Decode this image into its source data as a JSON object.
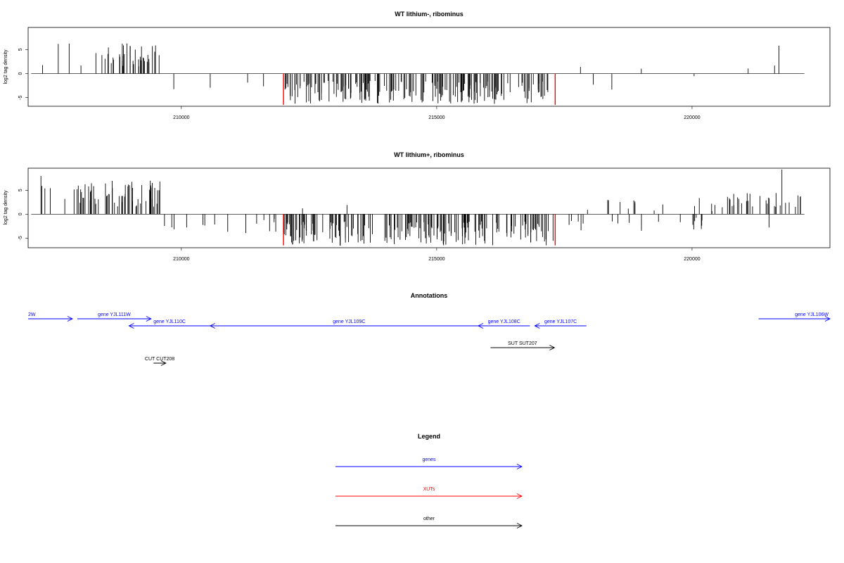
{
  "colors": {
    "gene": "#0000ff",
    "xut": "#ff0000",
    "other": "#000000",
    "bars": "#000000"
  },
  "chart_data": [
    {
      "type": "bar",
      "panel": "density-top",
      "title": "WT lithium-, ribominus",
      "xlabel": "",
      "ylabel": "log2 tag density",
      "xlim": [
        207000,
        222700
      ],
      "ylim": [
        -6.8,
        9.6
      ],
      "xticks": [
        210000,
        215000,
        220000
      ],
      "yticks": [
        -5,
        0,
        5
      ],
      "grid": false,
      "red_markers_x": [
        212000,
        217320
      ],
      "segments": [
        {
          "start": 207060,
          "end": 207400,
          "sign": 1,
          "min": 1.0,
          "max": 3.5,
          "density": 0.012
        },
        {
          "start": 207400,
          "end": 207700,
          "sign": 1,
          "min": 1.0,
          "max": 6.2,
          "density": 0.015
        },
        {
          "start": 207980,
          "end": 208060,
          "sign": 1,
          "min": 1.0,
          "max": 2.0,
          "density": 0.02
        },
        {
          "start": 207700,
          "end": 208300,
          "sign": 1,
          "min": 2.0,
          "max": 6.8,
          "density": 0.004
        },
        {
          "start": 208300,
          "end": 209600,
          "sign": 1,
          "min": 1.5,
          "max": 6.5,
          "density": 0.3
        },
        {
          "start": 209850,
          "end": 210000,
          "sign": -1,
          "min": 1.0,
          "max": 4.5,
          "density": 0.03
        },
        {
          "start": 210000,
          "end": 212000,
          "sign": -1,
          "min": 0.8,
          "max": 3.5,
          "density": 0.015
        },
        {
          "start": 212000,
          "end": 217200,
          "sign": -1,
          "min": 1.5,
          "max": 6.3,
          "density": 0.38
        },
        {
          "start": 217450,
          "end": 218400,
          "sign": 1,
          "min": 1.0,
          "max": 4.5,
          "density": 0.012
        },
        {
          "start": 217400,
          "end": 219200,
          "sign": -1,
          "min": 0.8,
          "max": 4.0,
          "density": 0.012
        },
        {
          "start": 218900,
          "end": 219100,
          "sign": 1,
          "min": 1.0,
          "max": 2.0,
          "density": 0.02
        },
        {
          "start": 219200,
          "end": 220200,
          "sign": -1,
          "min": 0.5,
          "max": 2.5,
          "density": 0.01
        },
        {
          "start": 220650,
          "end": 221400,
          "sign": 1,
          "min": 1.0,
          "max": 3.2,
          "density": 0.018
        },
        {
          "start": 221400,
          "end": 222000,
          "sign": 1,
          "min": 1.0,
          "max": 3.0,
          "density": 0.012
        },
        {
          "start": 221700,
          "end": 221710,
          "sign": 1,
          "min": 5.8,
          "max": 5.9,
          "density": 1
        }
      ]
    },
    {
      "type": "bar",
      "panel": "density-bottom",
      "title": "WT lithium+, ribominus",
      "xlabel": "",
      "ylabel": "log2 tag density",
      "xlim": [
        207000,
        222700
      ],
      "ylim": [
        -7.0,
        9.6
      ],
      "xticks": [
        210000,
        215000,
        220000
      ],
      "yticks": [
        -5,
        0,
        5
      ],
      "grid": false,
      "red_markers_x": [
        212000,
        217320
      ],
      "segments": [
        {
          "start": 207060,
          "end": 207700,
          "sign": 1,
          "min": 1.0,
          "max": 6.0,
          "density": 0.05
        },
        {
          "start": 207250,
          "end": 207260,
          "sign": 1,
          "min": 7.9,
          "max": 8.0,
          "density": 1
        },
        {
          "start": 207700,
          "end": 209600,
          "sign": 1,
          "min": 1.5,
          "max": 7.0,
          "density": 0.32
        },
        {
          "start": 209600,
          "end": 212000,
          "sign": -1,
          "min": 0.8,
          "max": 4.5,
          "density": 0.06
        },
        {
          "start": 209400,
          "end": 209900,
          "sign": -1,
          "min": 1.0,
          "max": 2.5,
          "density": 0.02
        },
        {
          "start": 212050,
          "end": 213400,
          "sign": 1,
          "min": 1.0,
          "max": 3.5,
          "density": 0.012
        },
        {
          "start": 212000,
          "end": 217300,
          "sign": -1,
          "min": 1.5,
          "max": 6.7,
          "density": 0.38
        },
        {
          "start": 217350,
          "end": 220800,
          "sign": 1,
          "min": 0.5,
          "max": 3.8,
          "density": 0.05
        },
        {
          "start": 217350,
          "end": 220300,
          "sign": -1,
          "min": 0.5,
          "max": 3.8,
          "density": 0.06
        },
        {
          "start": 220700,
          "end": 222200,
          "sign": 1,
          "min": 1.5,
          "max": 4.5,
          "density": 0.2
        },
        {
          "start": 221750,
          "end": 221760,
          "sign": 1,
          "min": 9.3,
          "max": 9.4,
          "density": 1
        },
        {
          "start": 221500,
          "end": 221510,
          "sign": -1,
          "min": 2.7,
          "max": 2.8,
          "density": 1
        }
      ]
    }
  ],
  "annotations": {
    "title": "Annotations",
    "features": [
      {
        "label": "2W",
        "start": 207000,
        "end": 208800,
        "strand": "+",
        "track": 0,
        "type": "gene",
        "label_align": "start"
      },
      {
        "label": "gene YJL111W",
        "start": 209000,
        "end": 212000,
        "strand": "+",
        "track": 0,
        "type": "gene",
        "label_align": "middle"
      },
      {
        "label": "gene YJL110C",
        "start": 211100,
        "end": 214400,
        "strand": "-",
        "track": 1,
        "type": "gene",
        "label_align": "middle"
      },
      {
        "label": "gene YJL109C",
        "start": 214400,
        "end": 225700,
        "strand": "-",
        "track": 1,
        "type": "gene",
        "label_align": "middle"
      },
      {
        "label": "gene YJL108C",
        "start": 225300,
        "end": 227400,
        "strand": "-",
        "track": 1,
        "type": "gene",
        "label_align": "middle"
      },
      {
        "label": "gene YJL107C",
        "start": 227600,
        "end": 229700,
        "strand": "-",
        "track": 1,
        "type": "gene",
        "label_align": "middle"
      },
      {
        "label": "gene YJL106W",
        "start": 236700,
        "end": 239600,
        "strand": "+",
        "track": 0,
        "type": "gene",
        "label_align": "end"
      },
      {
        "label": "SUT SUT207",
        "start": 225800,
        "end": 228400,
        "strand": "+",
        "track": 2,
        "type": "other",
        "label_align": "middle"
      },
      {
        "label": "CUT CUT208",
        "start": 212100,
        "end": 212600,
        "strand": "+",
        "track": 3,
        "type": "other",
        "label_align": "middle"
      }
    ]
  },
  "legend": {
    "title": "Legend",
    "items": [
      {
        "label": "genes",
        "type": "gene"
      },
      {
        "label": "XUTs",
        "type": "xut"
      },
      {
        "label": "other",
        "type": "other"
      }
    ]
  }
}
